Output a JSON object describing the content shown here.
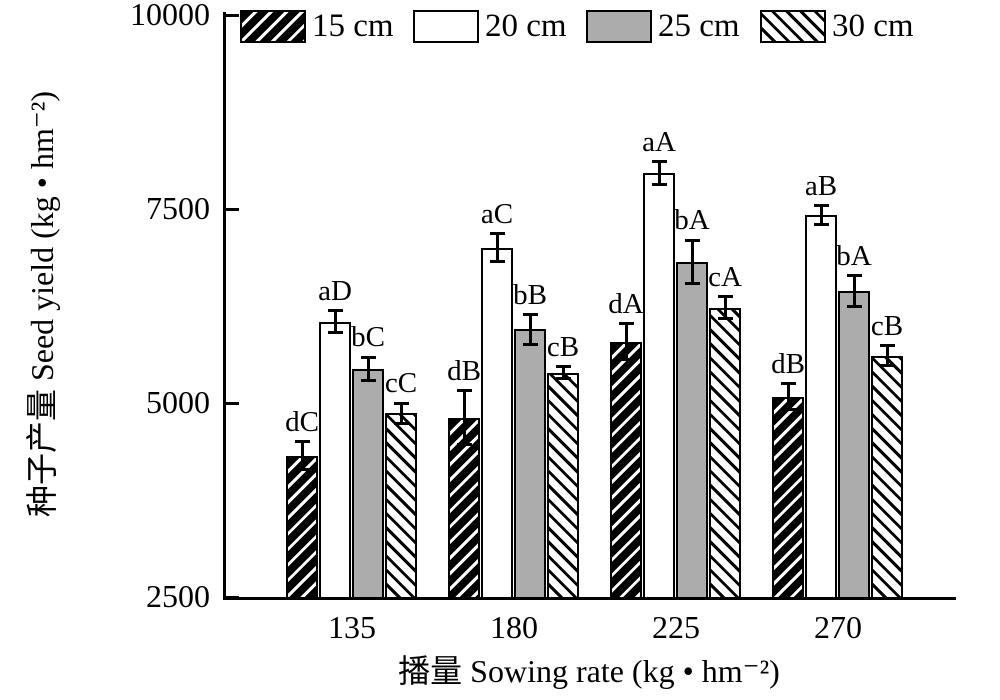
{
  "chart_data": {
    "type": "bar",
    "title": "",
    "xlabel": "播量 Sowing rate (kg • hm⁻²)",
    "ylabel": "种子产量 Seed yield (kg • hm⁻²)",
    "categories": [
      "135",
      "180",
      "225",
      "270"
    ],
    "ylim": [
      2500,
      10000
    ],
    "yticks": [
      "2500",
      "5000",
      "7500",
      "10000"
    ],
    "grid": false,
    "legend_position": "top",
    "series": [
      {
        "name": "15 cm",
        "pattern": "black-diagonal-up",
        "values": [
          4320,
          4810,
          5790,
          5080
        ],
        "errors": [
          180,
          350,
          230,
          170
        ],
        "point_labels": [
          "dC",
          "dB",
          "dA",
          "dB"
        ]
      },
      {
        "name": "20 cm",
        "pattern": "white",
        "values": [
          6050,
          7000,
          7960,
          7420
        ],
        "errors": [
          140,
          180,
          150,
          120
        ],
        "point_labels": [
          "aD",
          "aC",
          "aA",
          "aB"
        ]
      },
      {
        "name": "25 cm",
        "pattern": "gray",
        "values": [
          5440,
          5950,
          6820,
          6440
        ],
        "errors": [
          150,
          190,
          280,
          200
        ],
        "point_labels": [
          "bC",
          "bB",
          "bA",
          "bA"
        ]
      },
      {
        "name": "30 cm",
        "pattern": "white-diagonal-down",
        "values": [
          4870,
          5390,
          6230,
          5610
        ],
        "errors": [
          130,
          80,
          140,
          130
        ],
        "point_labels": [
          "cC",
          "cB",
          "cA",
          "cB"
        ]
      }
    ],
    "colors": {
      "bar_black": "#000000",
      "bar_white": "#ffffff",
      "bar_gray": "#acacac",
      "axis": "#000000"
    }
  }
}
